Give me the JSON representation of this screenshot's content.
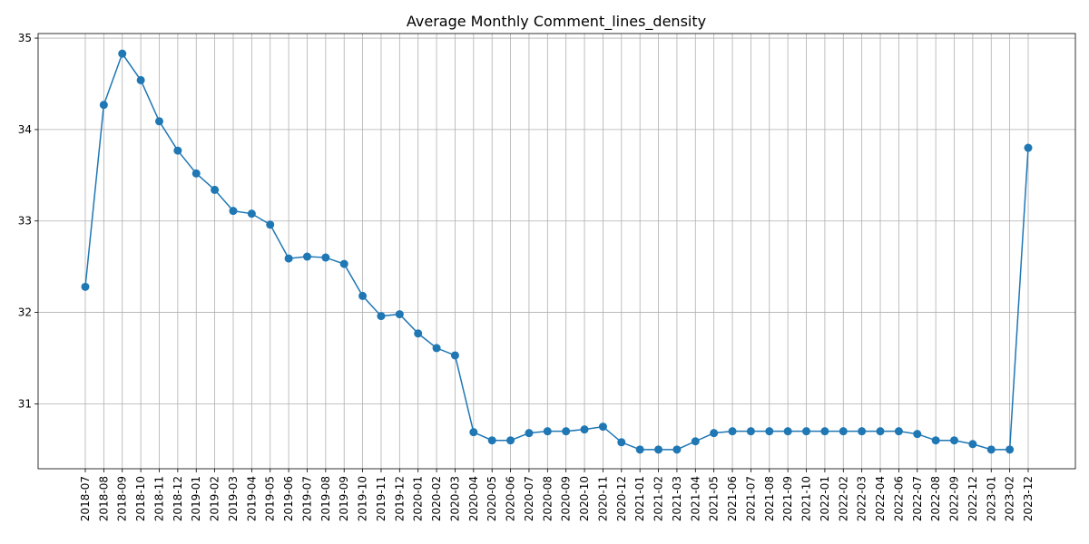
{
  "chart_data": {
    "type": "line",
    "title": "Average Monthly Comment_lines_density",
    "xlabel": "",
    "ylabel": "",
    "grid": true,
    "marker": "circle",
    "colors": {
      "series": "#1f77b4",
      "grid": "#b0b0b0"
    },
    "ylim": [
      30.29,
      35.05
    ],
    "yticks": [
      31,
      32,
      33,
      34,
      35
    ],
    "categories": [
      "2018-07",
      "2018-08",
      "2018-09",
      "2018-10",
      "2018-11",
      "2018-12",
      "2019-01",
      "2019-02",
      "2019-03",
      "2019-04",
      "2019-05",
      "2019-06",
      "2019-07",
      "2019-08",
      "2019-09",
      "2019-10",
      "2019-11",
      "2019-12",
      "2020-01",
      "2020-02",
      "2020-03",
      "2020-04",
      "2020-05",
      "2020-06",
      "2020-07",
      "2020-08",
      "2020-09",
      "2020-10",
      "2020-11",
      "2020-12",
      "2021-01",
      "2021-02",
      "2021-03",
      "2021-04",
      "2021-05",
      "2021-06",
      "2021-07",
      "2021-08",
      "2021-09",
      "2021-10",
      "2022-01",
      "2022-02",
      "2022-03",
      "2022-04",
      "2022-06",
      "2022-07",
      "2022-08",
      "2022-09",
      "2022-12",
      "2023-01",
      "2023-02",
      "2023-12"
    ],
    "series": [
      {
        "values": [
          32.28,
          34.27,
          34.83,
          34.54,
          34.09,
          33.77,
          33.52,
          33.34,
          33.11,
          33.08,
          32.96,
          32.59,
          32.61,
          32.6,
          32.53,
          32.18,
          31.96,
          31.98,
          31.77,
          31.61,
          31.53,
          30.69,
          30.6,
          30.6,
          30.68,
          30.7,
          30.7,
          30.72,
          30.75,
          30.58,
          30.5,
          30.5,
          30.5,
          30.59,
          30.68,
          30.7,
          30.7,
          30.7,
          30.7,
          30.7,
          30.7,
          30.7,
          30.7,
          30.7,
          30.7,
          30.67,
          30.6,
          30.6,
          30.56,
          30.5,
          30.5,
          33.8
        ]
      }
    ]
  }
}
